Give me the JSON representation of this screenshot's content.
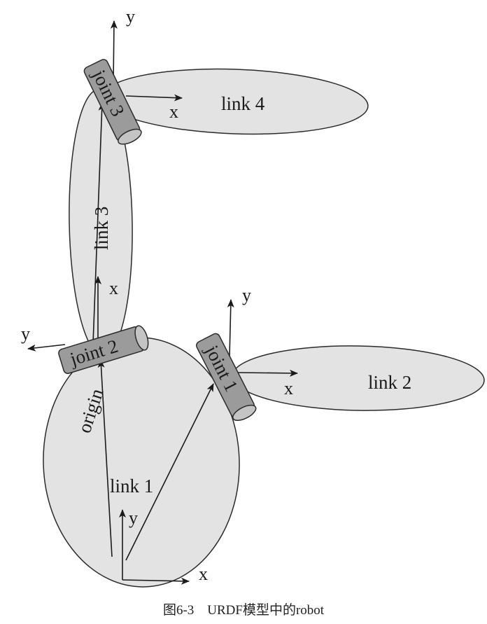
{
  "links": {
    "link1": "link 1",
    "link2": "link 2",
    "link3": "link 3",
    "link4": "link 4"
  },
  "joints": {
    "joint1": "joint 1",
    "joint2": "joint 2",
    "joint3": "joint 3"
  },
  "origin_label": "origin",
  "axes": {
    "x": "x",
    "y": "y"
  },
  "caption": "图6-3　URDF模型中的robot",
  "colors": {
    "link_fill": "#e3e3e3",
    "joint_fill": "#9b9b9b",
    "stroke": "#2b2b2b"
  }
}
